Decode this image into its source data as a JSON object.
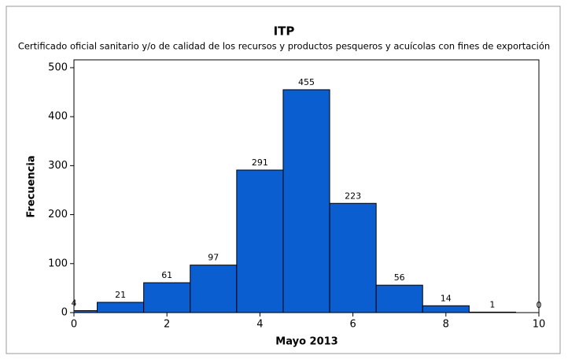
{
  "chart_data": {
    "type": "histogram",
    "title": "ITP",
    "subtitle": "Certificado oficial sanitario y/o de calidad de los recursos y productos pesqueros y acuícolas con fines de exportación",
    "x_label": "Mayo 2013",
    "y_label": "Frecuencia",
    "bins": [
      -0.5,
      0.5,
      1.5,
      2.5,
      3.5,
      4.5,
      5.5,
      6.5,
      7.5,
      8.5,
      9.5,
      10.5
    ],
    "values": [
      4,
      21,
      61,
      97,
      291,
      455,
      223,
      56,
      14,
      1,
      0
    ],
    "color": "#0b5ed0",
    "xlim": [
      0,
      10
    ],
    "xticks": [
      0,
      2,
      4,
      6,
      8,
      10
    ],
    "ylim": [
      0,
      516
    ],
    "yticks": [
      0,
      100,
      200,
      300,
      400,
      500
    ]
  }
}
